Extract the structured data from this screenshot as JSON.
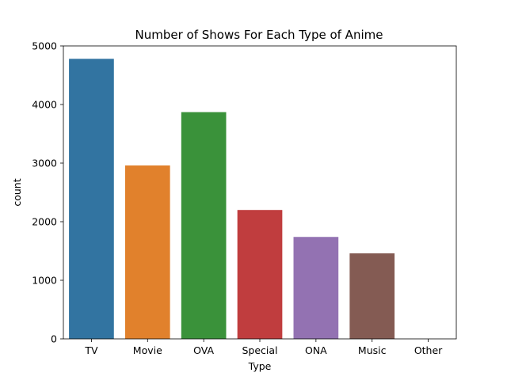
{
  "chart_data": {
    "type": "bar",
    "title": "Number of Shows For Each Type of Anime",
    "xlabel": "Type",
    "ylabel": "count",
    "categories": [
      "TV",
      "Movie",
      "OVA",
      "Special",
      "ONA",
      "Music",
      "Other"
    ],
    "values": [
      4780,
      2960,
      3870,
      2200,
      1740,
      1460,
      0
    ],
    "colors": [
      "#3274a1",
      "#e1812c",
      "#3a923a",
      "#c03d3e",
      "#9372b2",
      "#845b53",
      "#d684bd"
    ],
    "ylim": [
      0,
      5000
    ],
    "yticks": [
      0,
      1000,
      2000,
      3000,
      4000,
      5000
    ],
    "grid": false,
    "legend": "none"
  }
}
